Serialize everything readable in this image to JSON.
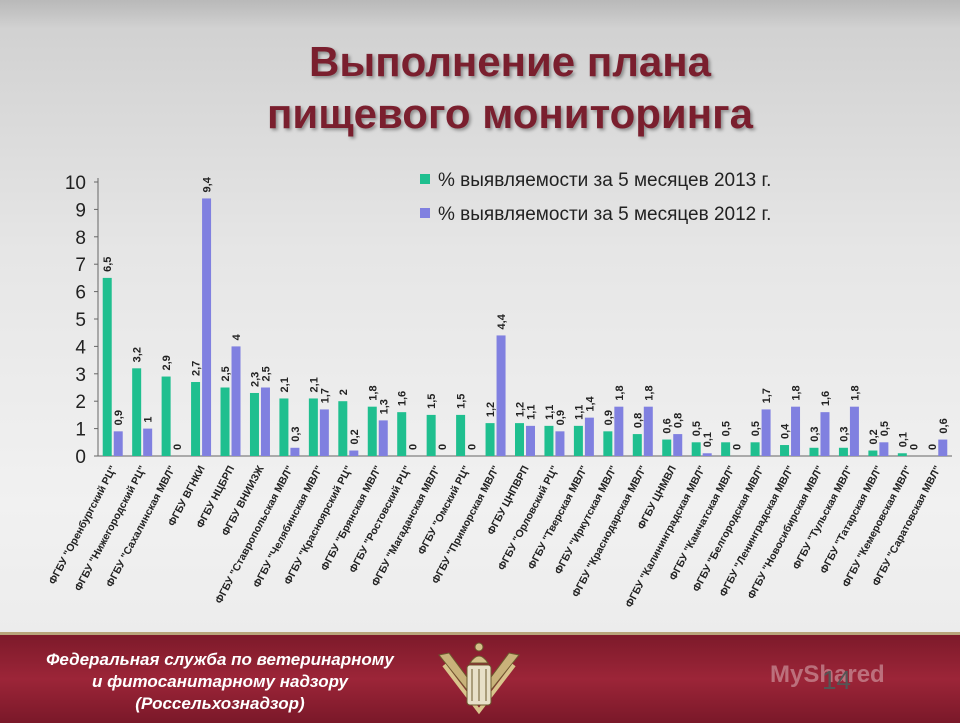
{
  "slide": {
    "title_line1": "Выполнение плана",
    "title_line2": "пищевого мониторинга",
    "footer_line1": "Федеральная служба по ветеринарному",
    "footer_line2": "и фитосанитарному надзору",
    "footer_line3": "(Россельхознадзор)",
    "page_number": "14",
    "watermark": "MyShared"
  },
  "colors": {
    "series_2013": "#1fbf8f",
    "series_2012": "#8080e0",
    "title": "#7a1f2e",
    "footer": "#8f2233"
  },
  "chart_data": {
    "type": "bar",
    "title": "",
    "xlabel": "",
    "ylabel": "",
    "ylim": [
      0,
      10
    ],
    "yticks": [
      0,
      1,
      2,
      3,
      4,
      5,
      6,
      7,
      8,
      9,
      10
    ],
    "grid": false,
    "legend": "top-right",
    "categories": [
      "ФГБУ \"Оренбургский РЦ\"",
      "ФГБУ \"Нижегородский РЦ\"",
      "ФГБУ \"Сахалинская МВЛ\"",
      "ФГБУ ВГНКИ",
      "ФГБУ НЦБРП",
      "ФГБУ ВНИИЗЖ",
      "ФГБУ \"Ставропольская МВЛ\"",
      "ФГБУ \"Челябинская МВЛ\"",
      "ФГБУ \"Красноярский РЦ\"",
      "ФГБУ \"Брянская МВЛ\"",
      "ФГБУ \"Ростовский РЦ\"",
      "ФГБУ \"Магаданская МВЛ\"",
      "ФГБУ \"Омский РЦ\"",
      "ФГБУ \"Приморская МВЛ\"",
      "ФГБУ ЦНПВРП",
      "ФГБУ \"Орловский РЦ\"",
      "ФГБУ \"Тверская МВЛ\"",
      "ФГБУ \"Иркутская МВЛ\"",
      "ФГБУ \"Краснодарская МВЛ\"",
      "ФГБУ ЦНМВЛ",
      "ФГБУ \"Калининградская МВЛ\"",
      "ФГБУ \"Камчатская МВЛ\"",
      "ФГБУ \"Белгородская МВЛ\"",
      "ФГБУ \"Ленинградская МВЛ\"",
      "ФГБУ \"Новосибирская МВЛ\"",
      "ФГБУ \"Тульская МВЛ\"",
      "ФГБУ \"Татарская МВЛ\"",
      "ФГБУ \"Кемеровская МВЛ\"",
      "ФГБУ \"Саратовская МВЛ\""
    ],
    "series": [
      {
        "name": "% выявляемости за 5 месяцев 2013 г.",
        "values": [
          6.5,
          3.2,
          2.9,
          2.7,
          2.5,
          2.3,
          2.1,
          2.1,
          2,
          1.8,
          1.6,
          1.5,
          1.5,
          1.2,
          1.2,
          1.1,
          1.1,
          0.9,
          0.8,
          0.6,
          0.5,
          0.5,
          0.5,
          0.4,
          0.3,
          0.3,
          0.2,
          0.1,
          0
        ],
        "labels": [
          "6,5",
          "3,2",
          "2,9",
          "2,7",
          "2,5",
          "2,3",
          "2,1",
          "2,1",
          "2",
          "1,8",
          "1,6",
          "1,5",
          "1,5",
          "1,2",
          "1,2",
          "1,1",
          "1,1",
          "0,9",
          "0,8",
          "0,6",
          "0,5",
          "0,5",
          "0,5",
          "0,4",
          "0,3",
          "0,3",
          "0,2",
          "0,1",
          "0"
        ]
      },
      {
        "name": "% выявляемости за 5 месяцев 2012 г.",
        "values": [
          0.9,
          1,
          0,
          9.4,
          4,
          2.5,
          0.3,
          1.7,
          0.2,
          1.3,
          0,
          0,
          0,
          4.4,
          1.1,
          0.9,
          1.4,
          1.8,
          1.8,
          0.8,
          0.1,
          0,
          1.7,
          1.8,
          1.6,
          1.8,
          0.5,
          0,
          0.6
        ],
        "labels": [
          "0,9",
          "1",
          "0",
          "9,4",
          "4",
          "2,5",
          "0,3",
          "1,7",
          "0,2",
          "1,3",
          "0",
          "0",
          "0",
          "4,4",
          "1,1",
          "0,9",
          "1,4",
          "1,8",
          "1,8",
          "0,8",
          "0,1",
          "0",
          "1,7",
          "1,8",
          "1,6",
          "1,8",
          "0,5",
          "0",
          "0,6"
        ]
      }
    ]
  }
}
